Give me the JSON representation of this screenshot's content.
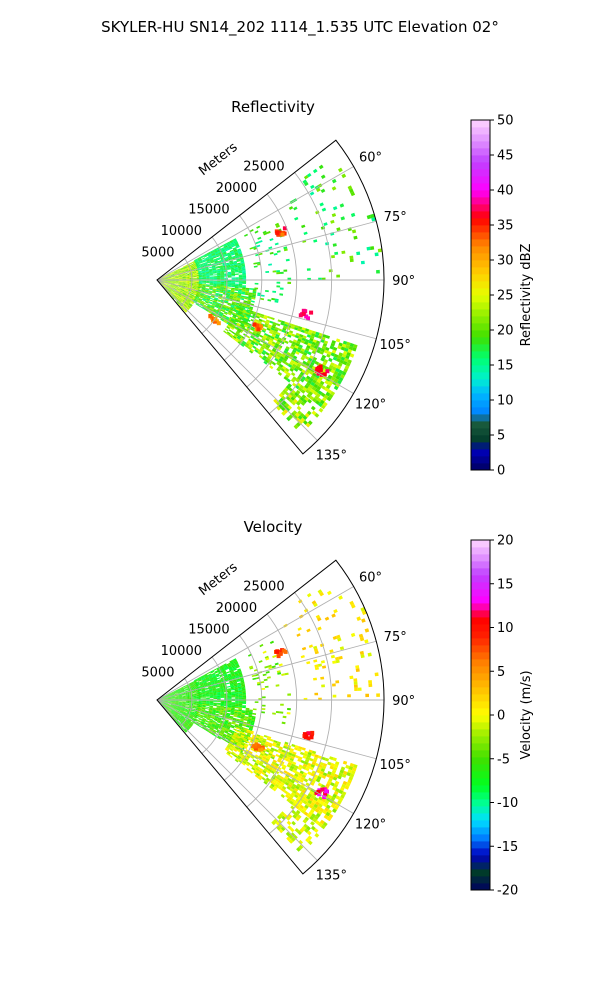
{
  "figure": {
    "suptitle": "SKYLER-HU  SN14_202  1114_1.535 UTC Elevation 02°"
  },
  "chart_data": [
    {
      "type": "polar-sector-heatmap",
      "title": "Reflectivity",
      "radial_label": "Meters",
      "r_ticks": [
        5000,
        10000,
        15000,
        20000,
        25000
      ],
      "r_max": 32500,
      "theta_ticks_deg": [
        60,
        75,
        90,
        105,
        120,
        135
      ],
      "theta_min_deg": 52,
      "theta_max_deg": 140,
      "grid": true,
      "colorbar": {
        "label": "Reflectivity dBZ",
        "min": 0,
        "max": 50,
        "ticks": [
          0,
          5,
          10,
          15,
          20,
          25,
          30,
          35,
          40,
          45,
          50
        ],
        "stops": [
          [
            0,
            "#000060"
          ],
          [
            3,
            "#0000c0"
          ],
          [
            4,
            "#003a2a"
          ],
          [
            7,
            "#1d5f3f"
          ],
          [
            8,
            "#0080ff"
          ],
          [
            11,
            "#00b8ff"
          ],
          [
            13,
            "#00f0d0"
          ],
          [
            16,
            "#00ff70"
          ],
          [
            19,
            "#40e000"
          ],
          [
            22,
            "#90ee00"
          ],
          [
            25,
            "#e6ff00"
          ],
          [
            28,
            "#ffd000"
          ],
          [
            32,
            "#ff8800"
          ],
          [
            36,
            "#ff0000"
          ],
          [
            40,
            "#ff00ff"
          ],
          [
            44,
            "#c040ff"
          ],
          [
            47,
            "#e090ff"
          ],
          [
            50,
            "#ffd6ff"
          ]
        ]
      },
      "field_bands": [
        {
          "rmin": 0,
          "rmax": 6000,
          "amin": 63,
          "amax": 138,
          "density": 0.95,
          "vmin": 19,
          "vmax": 26
        },
        {
          "rmin": 6000,
          "rmax": 12500,
          "amin": 62,
          "amax": 95,
          "density": 0.9,
          "vmin": 14,
          "vmax": 18
        },
        {
          "rmin": 6000,
          "rmax": 14000,
          "amin": 95,
          "amax": 122,
          "density": 0.85,
          "vmin": 15,
          "vmax": 23
        },
        {
          "rmin": 14000,
          "rmax": 19000,
          "amin": 62,
          "amax": 100,
          "density": 0.12,
          "vmin": 14,
          "vmax": 21
        },
        {
          "rmin": 12000,
          "rmax": 30000,
          "amin": 108,
          "amax": 127,
          "density": 0.7,
          "vmin": 17,
          "vmax": 25
        },
        {
          "rmin": 21000,
          "rmax": 32000,
          "amin": 55,
          "amax": 90,
          "density": 0.08,
          "vmin": 14,
          "vmax": 22
        },
        {
          "rmin": 24000,
          "rmax": 30000,
          "amin": 128,
          "amax": 137,
          "density": 0.5,
          "vmin": 18,
          "vmax": 27
        }
      ],
      "hotspots": [
        {
          "r": 27000,
          "theta": 119,
          "vmin": 32,
          "vmax": 38
        },
        {
          "r": 22000,
          "theta": 103,
          "vmin": 36,
          "vmax": 40
        },
        {
          "r": 19000,
          "theta": 69,
          "vmin": 32,
          "vmax": 38
        },
        {
          "r": 16000,
          "theta": 115,
          "vmin": 30,
          "vmax": 36
        },
        {
          "r": 10000,
          "theta": 125,
          "vmin": 30,
          "vmax": 34
        }
      ]
    },
    {
      "type": "polar-sector-heatmap",
      "title": "Velocity",
      "radial_label": "Meters",
      "r_ticks": [
        5000,
        10000,
        15000,
        20000,
        25000
      ],
      "r_max": 32500,
      "theta_ticks_deg": [
        60,
        75,
        90,
        105,
        120,
        135
      ],
      "theta_min_deg": 52,
      "theta_max_deg": 140,
      "grid": true,
      "colorbar": {
        "label": "Velocity (m/s)",
        "min": -20,
        "max": 20,
        "ticks": [
          -20,
          -15,
          -10,
          -5,
          0,
          5,
          10,
          15,
          20
        ],
        "stops": [
          [
            -20,
            "#000060"
          ],
          [
            -18,
            "#003a2a"
          ],
          [
            -16,
            "#0000c0"
          ],
          [
            -14,
            "#0080ff"
          ],
          [
            -12,
            "#00e0ff"
          ],
          [
            -10,
            "#00ff90"
          ],
          [
            -8,
            "#00ff20"
          ],
          [
            -5,
            "#40e000"
          ],
          [
            -2,
            "#a8f000"
          ],
          [
            0,
            "#ffff00"
          ],
          [
            3,
            "#ffc000"
          ],
          [
            6,
            "#ff8000"
          ],
          [
            9,
            "#ff2000"
          ],
          [
            11,
            "#ff0000"
          ],
          [
            13,
            "#ff00ff"
          ],
          [
            16,
            "#c040ff"
          ],
          [
            18,
            "#e090ff"
          ],
          [
            20,
            "#ffd6ff"
          ]
        ]
      },
      "field_bands": [
        {
          "rmin": 0,
          "rmax": 6000,
          "amin": 63,
          "amax": 138,
          "density": 0.95,
          "vmin": -8,
          "vmax": -4
        },
        {
          "rmin": 6000,
          "rmax": 12500,
          "amin": 62,
          "amax": 95,
          "density": 0.9,
          "vmin": -9,
          "vmax": -5
        },
        {
          "rmin": 6000,
          "rmax": 14000,
          "amin": 95,
          "amax": 122,
          "density": 0.85,
          "vmin": -8,
          "vmax": -2
        },
        {
          "rmin": 14000,
          "rmax": 19000,
          "amin": 62,
          "amax": 100,
          "density": 0.12,
          "vmin": -6,
          "vmax": 0
        },
        {
          "rmin": 12000,
          "rmax": 30000,
          "amin": 108,
          "amax": 127,
          "density": 0.7,
          "vmin": -3,
          "vmax": 2
        },
        {
          "rmin": 21000,
          "rmax": 32000,
          "amin": 55,
          "amax": 90,
          "density": 0.08,
          "vmin": -1,
          "vmax": 3
        },
        {
          "rmin": 24000,
          "rmax": 30000,
          "amin": 128,
          "amax": 137,
          "density": 0.5,
          "vmin": -3,
          "vmax": 1
        }
      ],
      "hotspots": [
        {
          "r": 27000,
          "theta": 119,
          "vmin": 11,
          "vmax": 14
        },
        {
          "r": 22000,
          "theta": 103,
          "vmin": 9,
          "vmax": 12
        },
        {
          "r": 19000,
          "theta": 69,
          "vmin": 6,
          "vmax": 10
        },
        {
          "r": 16000,
          "theta": 115,
          "vmin": 4,
          "vmax": 8
        }
      ]
    }
  ]
}
